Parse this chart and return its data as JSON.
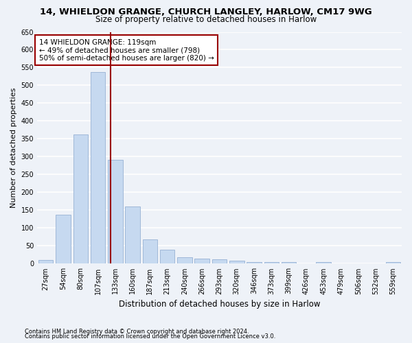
{
  "title1": "14, WHIELDON GRANGE, CHURCH LANGLEY, HARLOW, CM17 9WG",
  "title2": "Size of property relative to detached houses in Harlow",
  "xlabel": "Distribution of detached houses by size in Harlow",
  "ylabel": "Number of detached properties",
  "bar_labels": [
    "27sqm",
    "54sqm",
    "80sqm",
    "107sqm",
    "133sqm",
    "160sqm",
    "187sqm",
    "213sqm",
    "240sqm",
    "266sqm",
    "293sqm",
    "320sqm",
    "346sqm",
    "373sqm",
    "399sqm",
    "426sqm",
    "453sqm",
    "479sqm",
    "506sqm",
    "532sqm",
    "559sqm"
  ],
  "bar_values": [
    10,
    137,
    363,
    538,
    291,
    160,
    68,
    40,
    18,
    15,
    12,
    8,
    4,
    4,
    4,
    0,
    5,
    0,
    0,
    0,
    5
  ],
  "bar_color": "#c6d9f0",
  "bar_edgecolor": "#a0b8d8",
  "vline_x": 3.73,
  "vline_color": "#990000",
  "annotation_text": "14 WHIELDON GRANGE: 119sqm\n← 49% of detached houses are smaller (798)\n50% of semi-detached houses are larger (820) →",
  "annotation_box_color": "white",
  "annotation_box_edgecolor": "#990000",
  "ylim": [
    0,
    650
  ],
  "yticks": [
    0,
    50,
    100,
    150,
    200,
    250,
    300,
    350,
    400,
    450,
    500,
    550,
    600,
    650
  ],
  "footer1": "Contains HM Land Registry data © Crown copyright and database right 2024.",
  "footer2": "Contains public sector information licensed under the Open Government Licence v3.0.",
  "bg_color": "#eef2f8",
  "grid_color": "#ffffff",
  "title1_fontsize": 9.5,
  "title2_fontsize": 8.5,
  "tick_fontsize": 7,
  "ylabel_fontsize": 8,
  "xlabel_fontsize": 8.5,
  "annotation_fontsize": 7.5,
  "footer_fontsize": 6
}
